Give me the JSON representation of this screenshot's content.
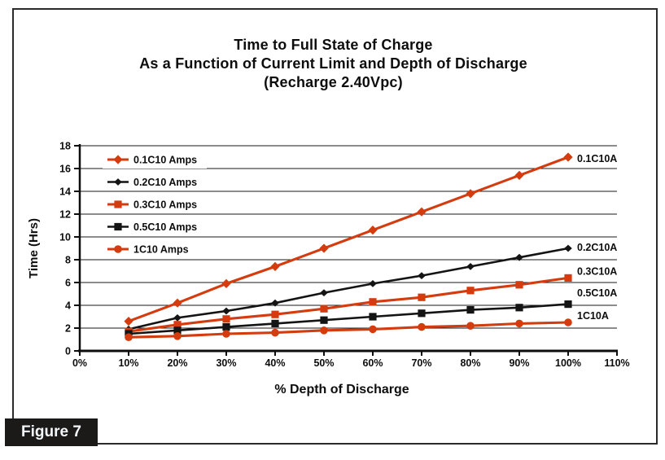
{
  "figure": {
    "label": "Figure 7"
  },
  "chart_data": {
    "type": "line",
    "title_lines": [
      "Time to Full State of Charge",
      "As a Function of Current Limit and Depth of Discharge",
      "(Recharge 2.40Vpc)"
    ],
    "xlabel": "% Depth of Discharge",
    "ylabel": "Time (Hrs)",
    "xlim_pct": [
      0,
      110
    ],
    "ylim": [
      0,
      18
    ],
    "x_tick_pcts": [
      0,
      10,
      20,
      30,
      40,
      50,
      60,
      70,
      80,
      90,
      100,
      110
    ],
    "x_tick_labels": [
      "0%",
      "10%",
      "20%",
      "30%",
      "40%",
      "50%",
      "60%",
      "70%",
      "80%",
      "90%",
      "100%",
      "110%"
    ],
    "y_ticks": [
      0,
      2,
      4,
      6,
      8,
      10,
      12,
      14,
      16,
      18
    ],
    "grid": "horizontal-only",
    "legend_position": "top-left-inside",
    "colors": {
      "red": "#d43c10",
      "black": "#141414",
      "grid": "#1a1a1a"
    },
    "x_pct": [
      10,
      20,
      30,
      40,
      50,
      60,
      70,
      80,
      90,
      100
    ],
    "series": [
      {
        "name": "0.1C10 Amps",
        "end_label": "0.1C10A",
        "end_label_y": 16.9,
        "color_key": "red",
        "marker": "diamond",
        "values": [
          2.6,
          4.2,
          5.9,
          7.4,
          9.0,
          10.6,
          12.2,
          13.8,
          15.4,
          17.0
        ]
      },
      {
        "name": "0.2C10 Amps",
        "end_label": "0.2C10A",
        "end_label_y": 9.1,
        "color_key": "black",
        "marker": "diamond-small",
        "values": [
          1.9,
          2.9,
          3.5,
          4.2,
          5.1,
          5.9,
          6.6,
          7.4,
          8.2,
          9.0
        ]
      },
      {
        "name": "0.3C10 Amps",
        "end_label": "0.3C10A",
        "end_label_y": 7.0,
        "color_key": "red",
        "marker": "square",
        "values": [
          1.7,
          2.3,
          2.8,
          3.2,
          3.7,
          4.3,
          4.7,
          5.3,
          5.8,
          6.4
        ]
      },
      {
        "name": "0.5C10 Amps",
        "end_label": "0.5C10A",
        "end_label_y": 5.1,
        "color_key": "black",
        "marker": "square",
        "values": [
          1.5,
          1.8,
          2.1,
          2.4,
          2.7,
          3.0,
          3.3,
          3.6,
          3.8,
          4.1
        ]
      },
      {
        "name": "1C10 Amps",
        "end_label": "1C10A",
        "end_label_y": 3.1,
        "color_key": "red",
        "marker": "circle",
        "values": [
          1.2,
          1.3,
          1.5,
          1.6,
          1.8,
          1.9,
          2.1,
          2.2,
          2.4,
          2.5
        ]
      }
    ]
  }
}
